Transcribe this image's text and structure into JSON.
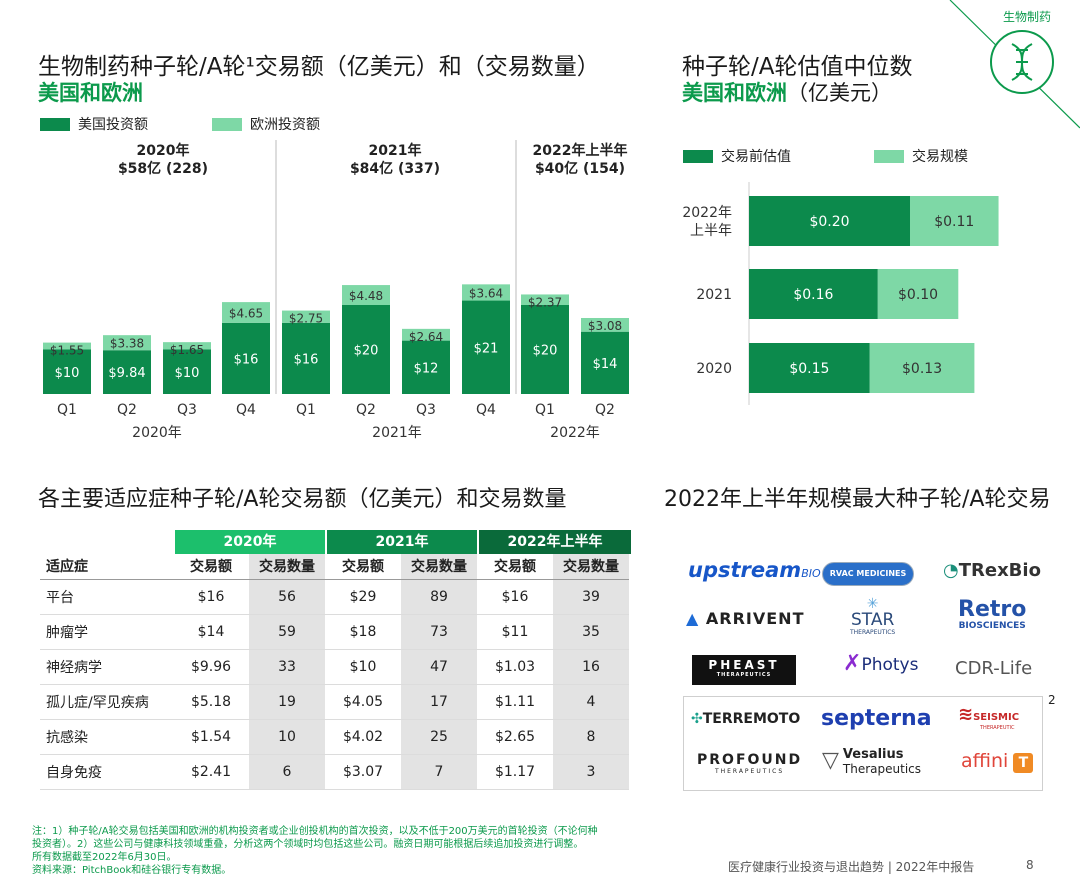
{
  "corner_label": "生物制药",
  "page_number": "8",
  "footer_title": "医疗健康行业投资与退出趋势 | 2022年中报告",
  "colors": {
    "dark": "#0c8a4c",
    "light": "#7ed8a6",
    "accent": "#0c9a4c"
  },
  "left_chart": {
    "title_line1": "生物制药种子轮/A轮¹交易额（亿美元）和（交易数量）",
    "title_line2": "美国和欧洲",
    "legend_us": "美国投资额",
    "legend_eu": "欧洲投资额",
    "period_labels": [
      {
        "line1": "2020年",
        "line2": "$58亿 (228)"
      },
      {
        "line1": "2021年",
        "line2": "$84亿 (337)"
      },
      {
        "line1": "2022年上半年",
        "line2": "$40亿 (154)"
      }
    ],
    "year_labels": [
      "2020年",
      "2021年",
      "2022年"
    ]
  },
  "right_chart": {
    "title_line1": "种子轮/A轮估值中位数",
    "title_line2_green": "美国和欧洲",
    "title_line2_rest": "（亿美元）",
    "legend_pre": "交易前估值",
    "legend_size": "交易规模"
  },
  "chart_data": [
    {
      "type": "bar",
      "stacked": true,
      "title": "生物制药种子轮/A轮¹交易额（亿美元）和（交易数量）",
      "categories": [
        "Q1",
        "Q2",
        "Q3",
        "Q4",
        "Q1",
        "Q2",
        "Q3",
        "Q4",
        "Q1",
        "Q2"
      ],
      "groups": [
        "2020年",
        "2020年",
        "2020年",
        "2020年",
        "2021年",
        "2021年",
        "2021年",
        "2021年",
        "2022年",
        "2022年"
      ],
      "series": [
        {
          "name": "美国投资额",
          "values": [
            10,
            9.84,
            10,
            16,
            16,
            20,
            12,
            21,
            20,
            14
          ],
          "labels": [
            "$10",
            "$9.84",
            "$10",
            "$16",
            "$16",
            "$20",
            "$12",
            "$21",
            "$20",
            "$14"
          ]
        },
        {
          "name": "欧洲投资额",
          "values": [
            1.55,
            3.38,
            1.65,
            4.65,
            2.75,
            4.48,
            2.64,
            3.64,
            2.37,
            3.08
          ],
          "labels": [
            "$1.55",
            "$3.38",
            "$1.65",
            "$4.65",
            "$2.75",
            "$4.48",
            "$2.64",
            "$3.64",
            "$2.37",
            "$3.08"
          ]
        }
      ],
      "ylim": [
        0,
        26
      ]
    },
    {
      "type": "bar",
      "orientation": "horizontal",
      "stacked": true,
      "title": "种子轮/A轮估值中位数 美国和欧洲（亿美元）",
      "categories": [
        "2022年上半年",
        "2021",
        "2020"
      ],
      "category_lines": [
        [
          "2022年",
          "上半年"
        ],
        [
          "2021"
        ],
        [
          "2020"
        ]
      ],
      "series": [
        {
          "name": "交易前估值",
          "values": [
            0.2,
            0.16,
            0.15
          ],
          "labels": [
            "$0.20",
            "$0.16",
            "$0.15"
          ]
        },
        {
          "name": "交易规模",
          "values": [
            0.11,
            0.1,
            0.13
          ],
          "labels": [
            "$0.11",
            "$0.10",
            "$0.13"
          ]
        }
      ],
      "xlim": [
        0,
        0.32
      ]
    },
    {
      "type": "table",
      "title": "各主要适应症种子轮/A轮交易额（亿美元）和交易数量",
      "year_headers": [
        "2020年",
        "2021年",
        "2022年上半年"
      ],
      "column_headers": [
        "适应症",
        "交易额",
        "交易数量",
        "交易额",
        "交易数量",
        "交易额",
        "交易数量"
      ],
      "rows": [
        [
          "平台",
          "$16",
          "56",
          "$29",
          "89",
          "$16",
          "39"
        ],
        [
          "肿瘤学",
          "$14",
          "59",
          "$18",
          "73",
          "$11",
          "35"
        ],
        [
          "神经病学",
          "$9.96",
          "33",
          "$10",
          "47",
          "$1.03",
          "16"
        ],
        [
          "孤儿症/罕见疾病",
          "$5.18",
          "19",
          "$4.05",
          "17",
          "$1.11",
          "4"
        ],
        [
          "抗感染",
          "$1.54",
          "10",
          "$4.02",
          "25",
          "$2.65",
          "8"
        ],
        [
          "自身免疫",
          "$2.41",
          "6",
          "$3.07",
          "7",
          "$1.17",
          "3"
        ]
      ]
    }
  ],
  "logos": {
    "title": "2022年上半年规模最大种子轮/A轮交易",
    "footnote_ref": "2",
    "upstream": "upstream",
    "upstream_suffix": "BIO",
    "rvac": "RVAC MEDICINES",
    "trexbio": "TRexBio",
    "arrivent": "ARRIVENT",
    "star": "STAR",
    "star_sub": "THERAPEUTICS",
    "retro": "Retro",
    "retro_sub": "BIOSCIENCES",
    "pheast": "PHEAST",
    "pheast_sub": "THERAPEUTICS",
    "photys": "Photys",
    "cdrlife": "CDR-Life",
    "terremoto": "TERREMOTO",
    "septerna": "septerna",
    "seismic": "SEISMIC",
    "seismic_sub": "THERAPEUTIC",
    "profound": "PROFOUND",
    "profound_sub": "THERAPEUTICS",
    "vesalius": "Vesalius",
    "vesalius_sub": "Therapeutics",
    "affini": "affini"
  },
  "notes": {
    "line1": "注：1）种子轮/A轮交易包括美国和欧洲的机构投资者或企业创投机构的首次投资，以及不低于200万美元的首轮投资（不论何种",
    "line2": "投资者）。2）这些公司与健康科技领域重叠，分析这两个领域时均包括这些公司。融资日期可能根据后续追加投资进行调整。",
    "line3": "所有数据截至2022年6月30日。",
    "line4": "资料来源：PitchBook和硅谷银行专有数据。"
  }
}
